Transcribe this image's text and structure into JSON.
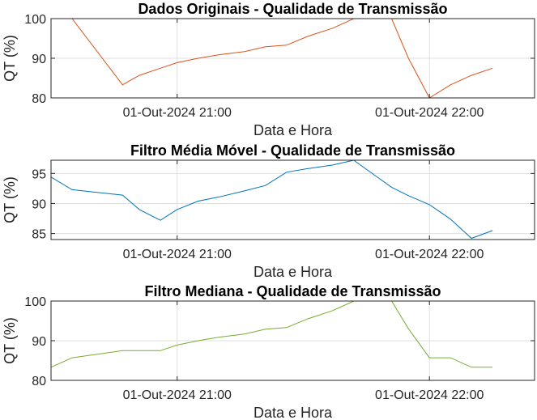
{
  "chart_data": [
    {
      "type": "line",
      "title": "Dados Originais - Qualidade de Transmissão",
      "xlabel": "Data e Hora",
      "ylabel": "QT (%)",
      "xlim": [
        "2024-10-01 20:30",
        "2024-10-01 22:25"
      ],
      "ylim": [
        80,
        100
      ],
      "yticks": [
        80,
        90,
        100
      ],
      "xticks": [
        "01-Out-2024 21:00",
        "01-Out-2024 22:00"
      ],
      "grid": true,
      "series": [
        {
          "color": "#D95319",
          "x": [
            "20:30",
            "20:35",
            "20:47",
            "20:51",
            "20:56",
            "21:00",
            "21:05",
            "21:10",
            "21:16",
            "21:21",
            "21:26",
            "21:31",
            "21:37",
            "21:42",
            "21:47",
            "21:51",
            "21:55",
            "22:00",
            "22:05",
            "22:10",
            "22:15"
          ],
          "y": [
            100,
            100,
            83.3,
            85.7,
            87.5,
            88.9,
            90,
            90.9,
            91.7,
            92.9,
            93.3,
            95.5,
            97.6,
            100,
            100,
            100,
            90,
            80,
            83.3,
            85.7,
            87.5
          ]
        }
      ]
    },
    {
      "type": "line",
      "title": "Filtro Média Móvel - Qualidade de Transmissão",
      "xlabel": "Data e Hora",
      "ylabel": "QT (%)",
      "xlim": [
        "2024-10-01 20:30",
        "2024-10-01 22:25"
      ],
      "ylim": [
        84,
        97.2
      ],
      "yticks": [
        85,
        90,
        95
      ],
      "xticks": [
        "01-Out-2024 21:00",
        "01-Out-2024 22:00"
      ],
      "grid": true,
      "series": [
        {
          "color": "#0072BD",
          "x": [
            "20:30",
            "20:35",
            "20:47",
            "20:51",
            "20:56",
            "21:00",
            "21:05",
            "21:10",
            "21:16",
            "21:21",
            "21:26",
            "21:31",
            "21:37",
            "21:42",
            "21:47",
            "21:51",
            "21:55",
            "22:00",
            "22:05",
            "22:10",
            "22:15"
          ],
          "y": [
            94.4,
            92.3,
            91.4,
            89.0,
            87.2,
            89.0,
            90.4,
            91.1,
            92.1,
            93.0,
            95.2,
            95.8,
            96.4,
            97.2,
            94.7,
            92.7,
            91.3,
            89.8,
            87.4,
            84.2,
            85.5
          ]
        }
      ]
    },
    {
      "type": "line",
      "title": "Filtro Mediana - Qualidade de Transmissão",
      "xlabel": "Data e Hora",
      "ylabel": "QT (%)",
      "xlim": [
        "2024-10-01 20:30",
        "2024-10-01 22:25"
      ],
      "ylim": [
        80,
        100
      ],
      "yticks": [
        80,
        90,
        100
      ],
      "xticks": [
        "01-Out-2024 21:00",
        "01-Out-2024 22:00"
      ],
      "grid": true,
      "series": [
        {
          "color": "#77AC30",
          "x": [
            "20:30",
            "20:35",
            "20:47",
            "20:51",
            "20:56",
            "21:00",
            "21:05",
            "21:10",
            "21:16",
            "21:21",
            "21:26",
            "21:31",
            "21:37",
            "21:42",
            "21:47",
            "21:51",
            "21:55",
            "22:00",
            "22:05",
            "22:10",
            "22:15"
          ],
          "y": [
            83.3,
            85.7,
            87.5,
            87.5,
            87.5,
            88.9,
            90,
            90.9,
            91.7,
            92.9,
            93.3,
            95.5,
            97.6,
            100,
            100,
            100,
            93.0,
            85.7,
            85.7,
            83.3,
            83.3
          ]
        }
      ]
    }
  ]
}
